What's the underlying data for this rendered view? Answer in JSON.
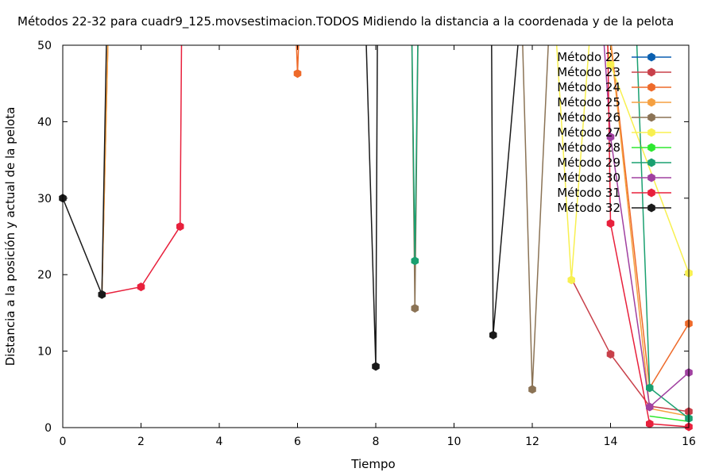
{
  "chart_data": {
    "type": "line",
    "title": "Métodos 22-32 para cuadr9_125.movsestimacion.TODOS Midiendo la distancia a la coordenada y de la pelota",
    "xlabel": "Tiempo",
    "ylabel": "Distancia a la posición y actual de la pelota",
    "xlim": [
      0,
      16
    ],
    "ylim": [
      0,
      50
    ],
    "xticks": [
      "0",
      "2",
      "4",
      "6",
      "8",
      "10",
      "12",
      "14",
      "16"
    ],
    "yticks": [
      "0",
      "10",
      "20",
      "30",
      "40",
      "50"
    ],
    "legend_position": "top-right",
    "series": [
      {
        "name": "Método 22",
        "color": "#0a5fb0",
        "points": [
          [
            16,
            1.0
          ]
        ]
      },
      {
        "name": "Método 23",
        "color": "#c8404a",
        "points": [
          [
            13,
            19.5
          ],
          [
            14,
            9.6
          ],
          [
            15,
            2.8
          ],
          [
            16,
            2.1
          ]
        ]
      },
      {
        "name": "Método 24",
        "color": "#ee6a2a",
        "points": [
          [
            1,
            17.4
          ],
          [
            1.2,
            60
          ],
          [
            5.9,
            60
          ],
          [
            6,
            46.3
          ],
          [
            6.1,
            60
          ],
          [
            13.8,
            60
          ],
          [
            15,
            5.2
          ],
          [
            16,
            13.6
          ]
        ]
      },
      {
        "name": "Método 25",
        "color": "#f5a040",
        "points": [
          [
            1,
            17.4
          ],
          [
            1.2,
            60
          ],
          [
            13.8,
            60
          ],
          [
            15,
            2.5
          ],
          [
            16,
            1.5
          ]
        ]
      },
      {
        "name": "Método 26",
        "color": "#8b7355",
        "points": [
          [
            8.9,
            60
          ],
          [
            9,
            15.6
          ],
          [
            9.1,
            60
          ],
          [
            11.7,
            60
          ],
          [
            12,
            5.0
          ],
          [
            12.5,
            60
          ]
        ]
      },
      {
        "name": "Método 27",
        "color": "#f8f050",
        "points": [
          [
            12.5,
            60
          ],
          [
            13,
            19.3
          ],
          [
            13.6,
            60
          ],
          [
            14,
            47.5
          ],
          [
            16,
            20.2
          ]
        ]
      },
      {
        "name": "Método 28",
        "color": "#2ee830",
        "points": [
          [
            15,
            1.5
          ],
          [
            16,
            0.8
          ]
        ]
      },
      {
        "name": "Método 29",
        "color": "#1aa070",
        "points": [
          [
            8.9,
            60
          ],
          [
            9,
            21.8
          ],
          [
            9.1,
            60
          ],
          [
            14.6,
            60
          ],
          [
            15,
            5.2
          ],
          [
            16,
            1.2
          ]
        ]
      },
      {
        "name": "Método 30",
        "color": "#a040a0",
        "points": [
          [
            13.7,
            60
          ],
          [
            14,
            38.0
          ],
          [
            15,
            2.7
          ],
          [
            16,
            7.2
          ]
        ]
      },
      {
        "name": "Método 31",
        "color": "#e8203c",
        "points": [
          [
            1,
            17.4
          ],
          [
            2,
            18.4
          ],
          [
            3,
            26.3
          ],
          [
            3.05,
            60
          ],
          [
            13.9,
            60
          ],
          [
            14,
            26.7
          ],
          [
            15,
            0.5
          ],
          [
            16,
            0.1
          ]
        ]
      },
      {
        "name": "Método 32",
        "color": "#1a1a1a",
        "points": [
          [
            0,
            30
          ],
          [
            1,
            17.4
          ],
          [
            1.15,
            60
          ],
          [
            7.7,
            60
          ],
          [
            8,
            8.0
          ],
          [
            8.05,
            60
          ],
          [
            10.95,
            60
          ],
          [
            11,
            12.1
          ],
          [
            11.8,
            60
          ]
        ]
      }
    ],
    "markers": [
      {
        "series": "Método 32",
        "x": 0,
        "y": 30
      },
      {
        "series": "Método 32",
        "x": 1,
        "y": 17.4
      },
      {
        "series": "Método 31",
        "x": 2,
        "y": 18.4
      },
      {
        "series": "Método 31",
        "x": 3,
        "y": 26.3
      },
      {
        "series": "Método 24",
        "x": 6,
        "y": 46.3
      },
      {
        "series": "Método 32",
        "x": 8,
        "y": 8.0
      },
      {
        "series": "Método 26",
        "x": 9,
        "y": 15.6
      },
      {
        "series": "Método 29",
        "x": 9,
        "y": 21.8
      },
      {
        "series": "Método 32",
        "x": 11,
        "y": 12.1
      },
      {
        "series": "Método 26",
        "x": 12,
        "y": 5.0
      },
      {
        "series": "Método 27",
        "x": 13,
        "y": 19.3
      },
      {
        "series": "Método 27",
        "x": 14,
        "y": 47.5
      },
      {
        "series": "Método 30",
        "x": 14,
        "y": 38.0
      },
      {
        "series": "Método 31",
        "x": 14,
        "y": 26.7
      },
      {
        "series": "Método 23",
        "x": 14,
        "y": 9.6
      },
      {
        "series": "Método 29",
        "x": 15,
        "y": 5.2
      },
      {
        "series": "Método 30",
        "x": 15,
        "y": 2.7
      },
      {
        "series": "Método 31",
        "x": 15,
        "y": 0.5
      },
      {
        "series": "Método 27",
        "x": 16,
        "y": 20.2
      },
      {
        "series": "Método 24",
        "x": 16,
        "y": 13.6
      },
      {
        "series": "Método 30",
        "x": 16,
        "y": 7.2
      },
      {
        "series": "Método 23",
        "x": 16,
        "y": 2.1
      },
      {
        "series": "Método 29",
        "x": 16,
        "y": 1.2
      },
      {
        "series": "Método 31",
        "x": 16,
        "y": 0.1
      }
    ]
  }
}
